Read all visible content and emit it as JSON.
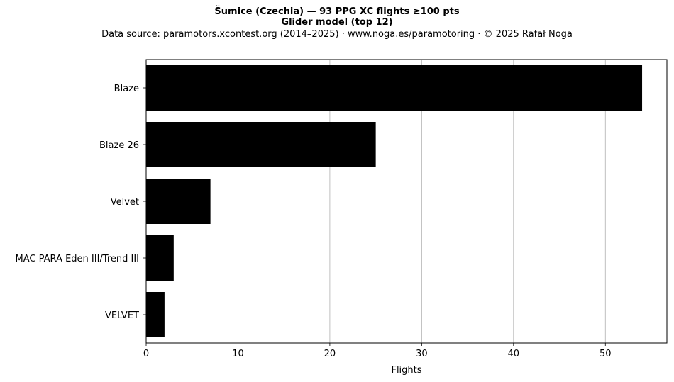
{
  "chart_data": {
    "type": "bar",
    "orientation": "horizontal",
    "title": "Šumice (Czechia)  —  93 PPG XC flights ≥100 pts",
    "subtitle": "Glider model (top 12)",
    "source_note": "Data source: paramotors.xcontest.org (2014–2025)  ·  www.noga.es/paramotoring  ·  © 2025 Rafał Noga",
    "categories": [
      "Blaze",
      "Blaze 26",
      "Velvet",
      "MAC PARA Eden III/Trend III",
      "VELVET"
    ],
    "values": [
      54,
      25,
      7,
      3,
      2
    ],
    "xlabel": "Flights",
    "ylabel": "",
    "xlim": [
      0,
      56.7
    ],
    "xticks": [
      0,
      10,
      20,
      30,
      40,
      50
    ],
    "grid": "vertical",
    "bar_color": "#000000",
    "grid_color": "#b0b0b0"
  }
}
